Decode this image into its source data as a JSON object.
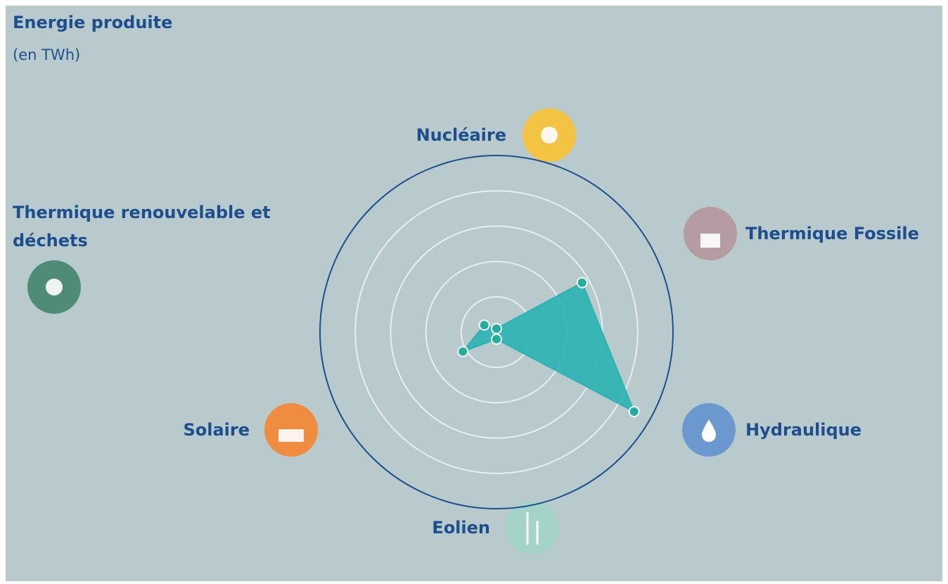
{
  "chart_data": {
    "type": "radar",
    "title": "Energie produite",
    "subtitle": "(en TWh)",
    "categories": [
      "Nucléaire",
      "Thermique Fossile",
      "Hydraulique",
      "Eolien",
      "Solaire",
      "Thermique renouvelable et déchets"
    ],
    "values": [
      0.1,
      2.8,
      4.5,
      0.2,
      1.1,
      0.4
    ],
    "color": "#2bb3b3",
    "ylim": [
      0,
      5
    ],
    "yticks": [
      1,
      2,
      3,
      4
    ],
    "grid": true
  }
}
